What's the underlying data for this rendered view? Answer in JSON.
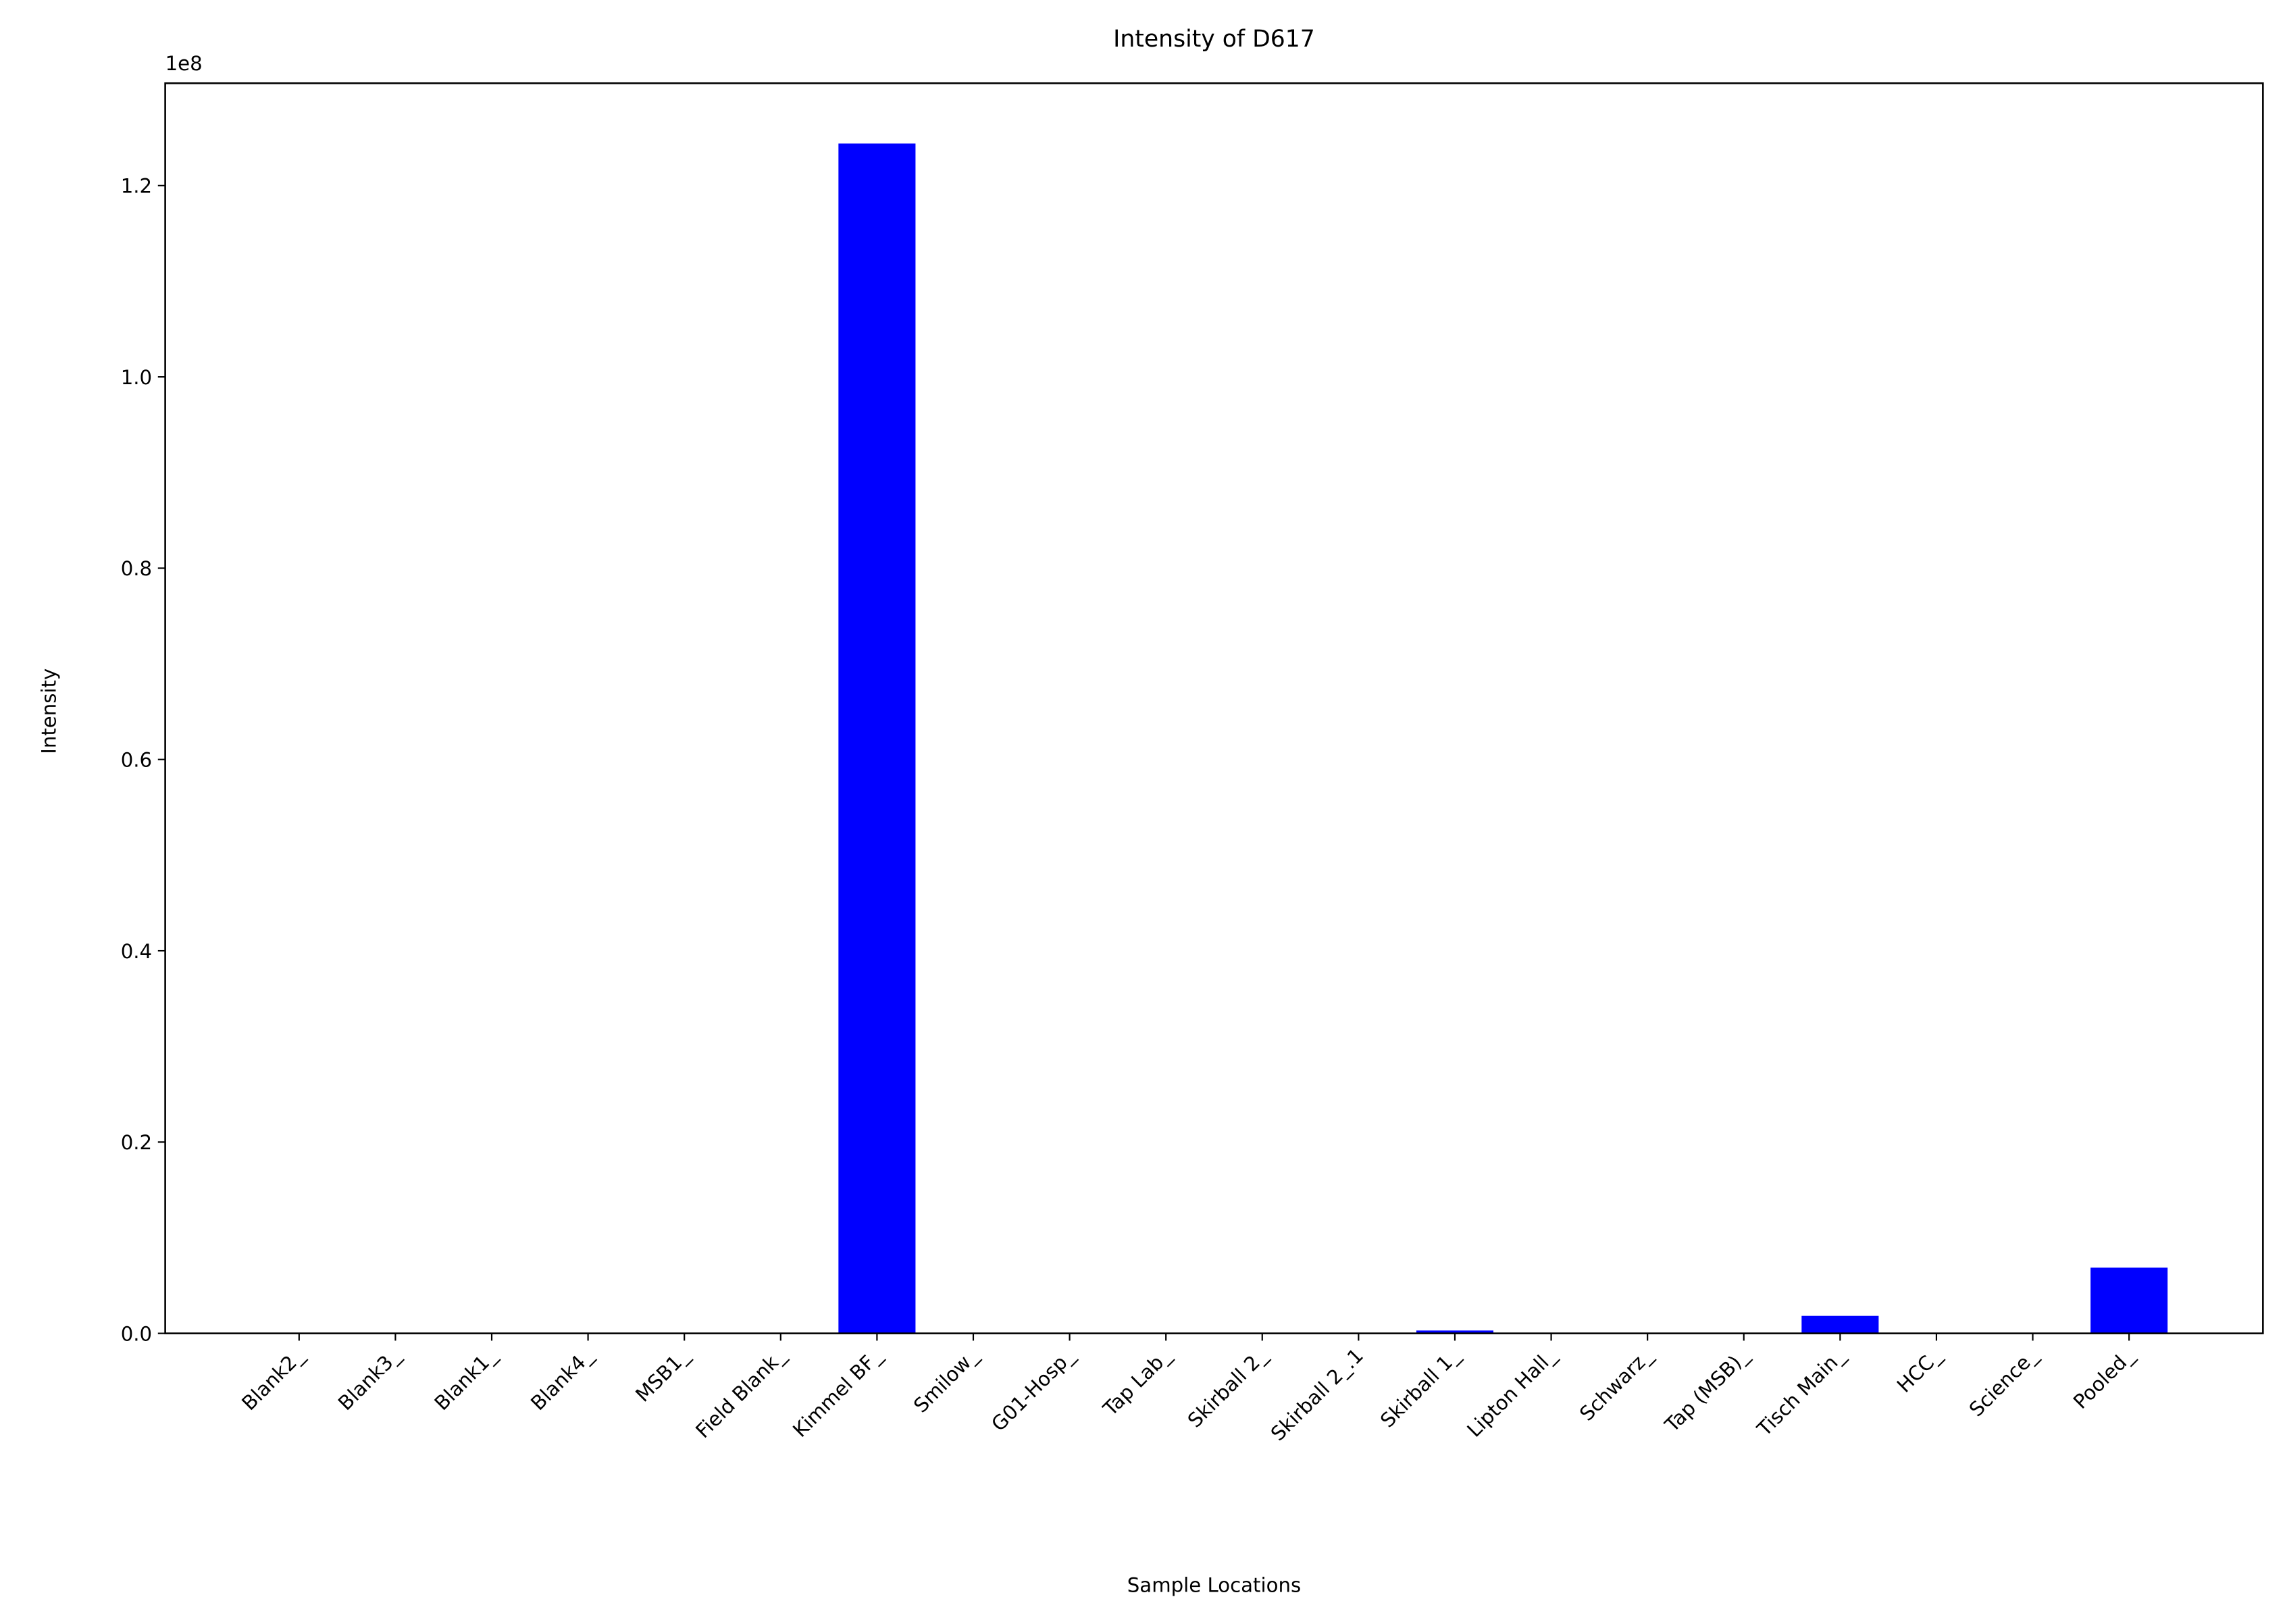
{
  "chart_data": {
    "type": "bar",
    "title": "Intensity of D617",
    "x_label": "Sample Locations",
    "y_label": "Intensity",
    "y_offset_label": "1e8",
    "categories": [
      "Blank2_",
      "Blank3_",
      "Blank1_",
      "Blank4_",
      "MSB1_",
      "Field Blank_",
      "Kimmel BF_",
      "Smilow_",
      "G01-Hosp_",
      "Tap Lab_",
      "Skirball 2_",
      "Skirball 2_.1",
      "Skirball 1_",
      "Lipton Hall_",
      "Schwarz_",
      "Tap (MSB)_",
      "Tisch Main_",
      "HCC_",
      "Science_",
      "Pooled_"
    ],
    "values": [
      0,
      0,
      0,
      0,
      0,
      0,
      124400000,
      0,
      0,
      0,
      0,
      0,
      300000,
      0,
      0,
      0,
      1830000,
      0,
      0,
      6870000
    ],
    "color": "#0000ff",
    "ylim": [
      0,
      130700000
    ],
    "yticks": [
      {
        "value": 0,
        "label": "0.0"
      },
      {
        "value": 20000000,
        "label": "0.2"
      },
      {
        "value": 40000000,
        "label": "0.4"
      },
      {
        "value": 60000000,
        "label": "0.6"
      },
      {
        "value": 80000000,
        "label": "0.8"
      },
      {
        "value": 100000000,
        "label": "1.0"
      },
      {
        "value": 120000000,
        "label": "1.2"
      }
    ],
    "grid": false
  }
}
